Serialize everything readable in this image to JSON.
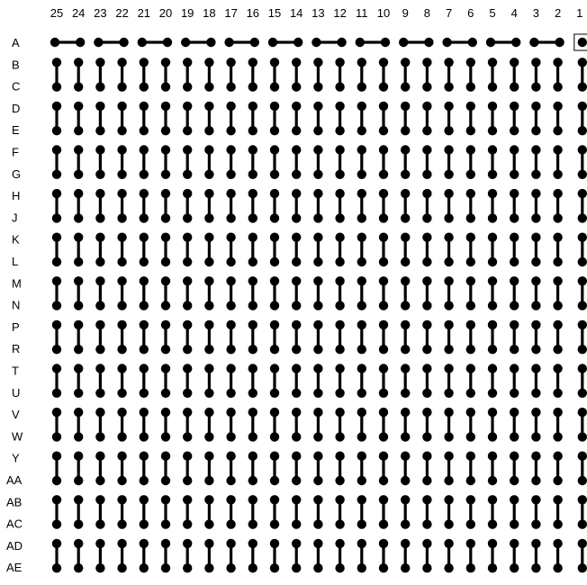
{
  "diagram": {
    "columns": [
      "25",
      "24",
      "23",
      "22",
      "21",
      "20",
      "19",
      "18",
      "17",
      "16",
      "15",
      "14",
      "13",
      "12",
      "11",
      "10",
      "9",
      "8",
      "7",
      "6",
      "5",
      "4",
      "3",
      "2",
      "1"
    ],
    "rows": [
      "A",
      "B",
      "C",
      "D",
      "E",
      "F",
      "G",
      "H",
      "J",
      "K",
      "L",
      "M",
      "N",
      "P",
      "R",
      "T",
      "U",
      "V",
      "W",
      "Y",
      "AA",
      "AB",
      "AC",
      "AD",
      "AE"
    ],
    "marked_pin": "A1",
    "colors": {
      "ink": "#000000",
      "background": "#ffffff"
    }
  }
}
